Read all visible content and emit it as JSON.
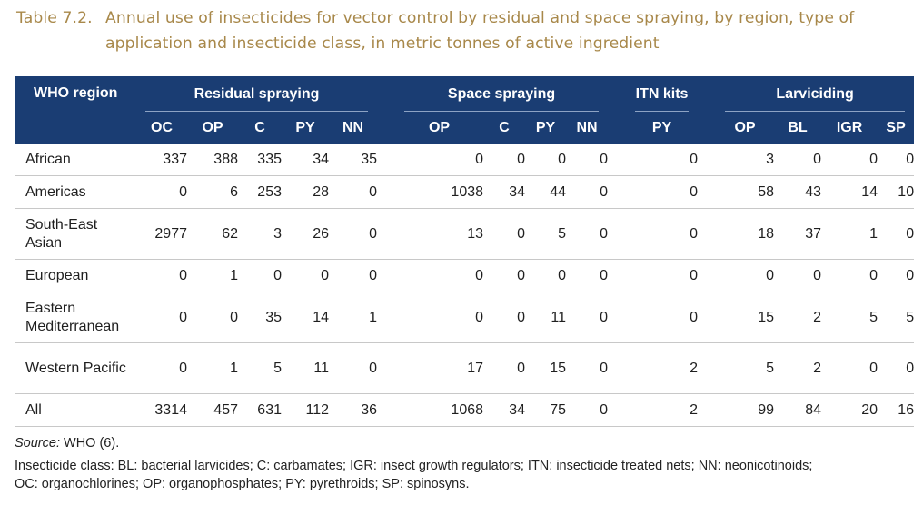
{
  "title": {
    "number": "Table 7.2.",
    "text": "Annual use of insecticides for vector control by residual and space spraying, by region, type of application and insecticide class, in metric tonnes of active ingredient"
  },
  "table": {
    "region_header": "WHO region",
    "groups": {
      "residual": "Residual spraying",
      "space": "Space spraying",
      "itn": "ITN kits",
      "larviciding": "Larviciding"
    },
    "columns": {
      "residual": [
        "OC",
        "OP",
        "C",
        "PY",
        "NN"
      ],
      "space": [
        "OP",
        "C",
        "PY",
        "NN"
      ],
      "itn": [
        "PY"
      ],
      "larviciding": [
        "OP",
        "BL",
        "IGR",
        "SP"
      ]
    },
    "rows": [
      {
        "region": "African",
        "residual": [
          "337",
          "388",
          "335",
          "34",
          "35"
        ],
        "space": [
          "0",
          "0",
          "0",
          "0"
        ],
        "itn": [
          "0"
        ],
        "larviciding": [
          "3",
          "0",
          "0",
          "0"
        ]
      },
      {
        "region": "Americas",
        "residual": [
          "0",
          "6",
          "253",
          "28",
          "0"
        ],
        "space": [
          "1038",
          "34",
          "44",
          "0"
        ],
        "itn": [
          "0"
        ],
        "larviciding": [
          "58",
          "43",
          "14",
          "10"
        ]
      },
      {
        "region": "South-East Asian",
        "residual": [
          "2977",
          "62",
          "3",
          "26",
          "0"
        ],
        "space": [
          "13",
          "0",
          "5",
          "0"
        ],
        "itn": [
          "0"
        ],
        "larviciding": [
          "18",
          "37",
          "1",
          "0"
        ]
      },
      {
        "region": "European",
        "residual": [
          "0",
          "1",
          "0",
          "0",
          "0"
        ],
        "space": [
          "0",
          "0",
          "0",
          "0"
        ],
        "itn": [
          "0"
        ],
        "larviciding": [
          "0",
          "0",
          "0",
          "0"
        ]
      },
      {
        "region": "Eastern Mediterranean",
        "residual": [
          "0",
          "0",
          "35",
          "14",
          "1"
        ],
        "space": [
          "0",
          "0",
          "11",
          "0"
        ],
        "itn": [
          "0"
        ],
        "larviciding": [
          "15",
          "2",
          "5",
          "5"
        ]
      },
      {
        "region": "Western Pacific",
        "residual": [
          "0",
          "1",
          "5",
          "11",
          "0"
        ],
        "space": [
          "17",
          "0",
          "15",
          "0"
        ],
        "itn": [
          "2"
        ],
        "larviciding": [
          "5",
          "2",
          "0",
          "0"
        ]
      },
      {
        "region": "All",
        "residual": [
          "3314",
          "457",
          "631",
          "112",
          "36"
        ],
        "space": [
          "1068",
          "34",
          "75",
          "0"
        ],
        "itn": [
          "2"
        ],
        "larviciding": [
          "99",
          "84",
          "20",
          "16"
        ]
      }
    ]
  },
  "notes": {
    "source_label": "Source:",
    "source_value": "WHO (6).",
    "line1": "Insecticide class: BL: bacterial larvicides; C: carbamates; IGR: insect growth regulators; ITN: insecticide treated nets; NN: neonicotinoids;",
    "line2": "OC: organochlorines; OP: organophosphates; PY: pyrethroids; SP: spinosyns."
  },
  "colors": {
    "title": "#a8884a",
    "header_bg": "#1a3d73",
    "header_text": "#ffffff",
    "row_divider": "#c8c8c8"
  }
}
